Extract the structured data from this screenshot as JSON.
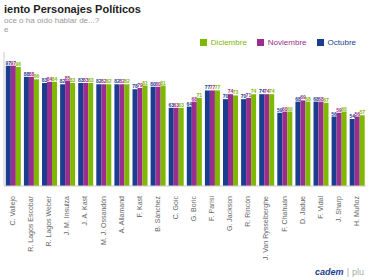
{
  "chart_data": {
    "type": "bar",
    "title": "iento Personajes Políticos",
    "subtitle": [
      "oce o ha oído hablar de...?",
      "e"
    ],
    "annotations": [
      "cadem",
      "|",
      "plu"
    ],
    "categories": [
      "C. Vallejo",
      "R. Lagos Escobar",
      "R. Lagos Weber",
      "J. M. Insulza",
      "J. A. Kast",
      "M. J. Ossandón",
      "A. Allamand",
      "F. Kast",
      "B. Sánchez",
      "C. Goic",
      "G. Boric",
      "F. Parisi",
      "G. Jackson",
      "R. Rincón",
      "J. Van Rysselberghe",
      "F. Chahuán",
      "D. Jadue",
      "F. Vidal",
      "J. Sharp",
      "H. Muñoz"
    ],
    "series": [
      {
        "name": "Octubre",
        "color": "#1a3d8f",
        "values": [
          97,
          88,
          83,
          82,
          83,
          82,
          82,
          78,
          80,
          63,
          64,
          77,
          70,
          70,
          74,
          59,
          68,
          68,
          56,
          54
        ]
      },
      {
        "name": "Noviembre",
        "color": "#9b2d8e",
        "values": [
          97,
          88,
          84,
          85,
          83,
          82,
          82,
          79,
          80,
          63,
          68,
          77,
          74,
          71,
          74,
          60,
          69,
          68,
          59,
          56
        ]
      },
      {
        "name": "Diciembre",
        "color": "#7fb800",
        "values": [
          96,
          86,
          84,
          83,
          83,
          82,
          82,
          81,
          81,
          63,
          71,
          77,
          73,
          74,
          74,
          60,
          68,
          67,
          60,
          57
        ]
      }
    ],
    "ylim": [
      0,
      108
    ],
    "yticks": [],
    "tick_labels": "x",
    "legend": "upper right",
    "data_labels": true,
    "grid": false
  }
}
